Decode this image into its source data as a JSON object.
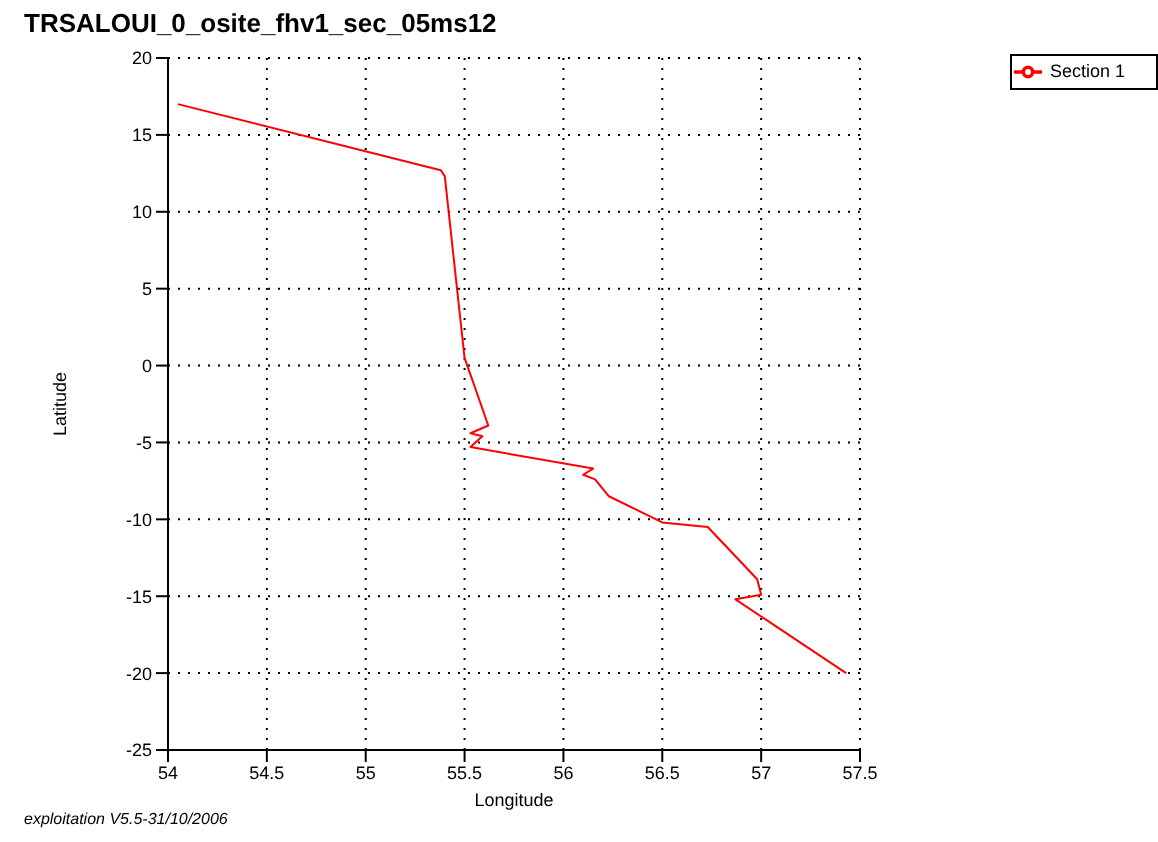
{
  "chart_data": {
    "type": "line",
    "title": "TRSALOUI_0_osite_fhv1_sec_05ms12",
    "xlabel": "Longitude",
    "ylabel": "Latitude",
    "series": [
      {
        "name": "Section 1",
        "color": "#ff0000",
        "x": [
          54.05,
          55.38,
          55.4,
          55.5,
          55.62,
          55.53,
          55.59,
          55.53,
          56.15,
          56.1,
          56.16,
          56.23,
          56.5,
          56.73,
          56.98,
          57.0,
          56.87,
          57.43
        ],
        "values": [
          17.0,
          12.7,
          12.3,
          0.5,
          -3.9,
          -4.4,
          -4.6,
          -5.3,
          -6.7,
          -7.1,
          -7.4,
          -8.5,
          -10.2,
          -10.5,
          -13.9,
          -14.9,
          -15.2,
          -20.0
        ]
      }
    ],
    "xlim": [
      54,
      57.5
    ],
    "xticks": [
      54,
      54.5,
      55,
      55.5,
      56,
      56.5,
      57,
      57.5
    ],
    "ylim": [
      -25,
      20
    ],
    "yticks": [
      -25,
      -20,
      -15,
      -10,
      -5,
      0,
      5,
      10,
      15,
      20
    ],
    "grid": true,
    "legend": "top right",
    "marker": "none",
    "line_style": "solid",
    "annotations": [
      "exploitation V5.5-31/10/2006"
    ]
  }
}
